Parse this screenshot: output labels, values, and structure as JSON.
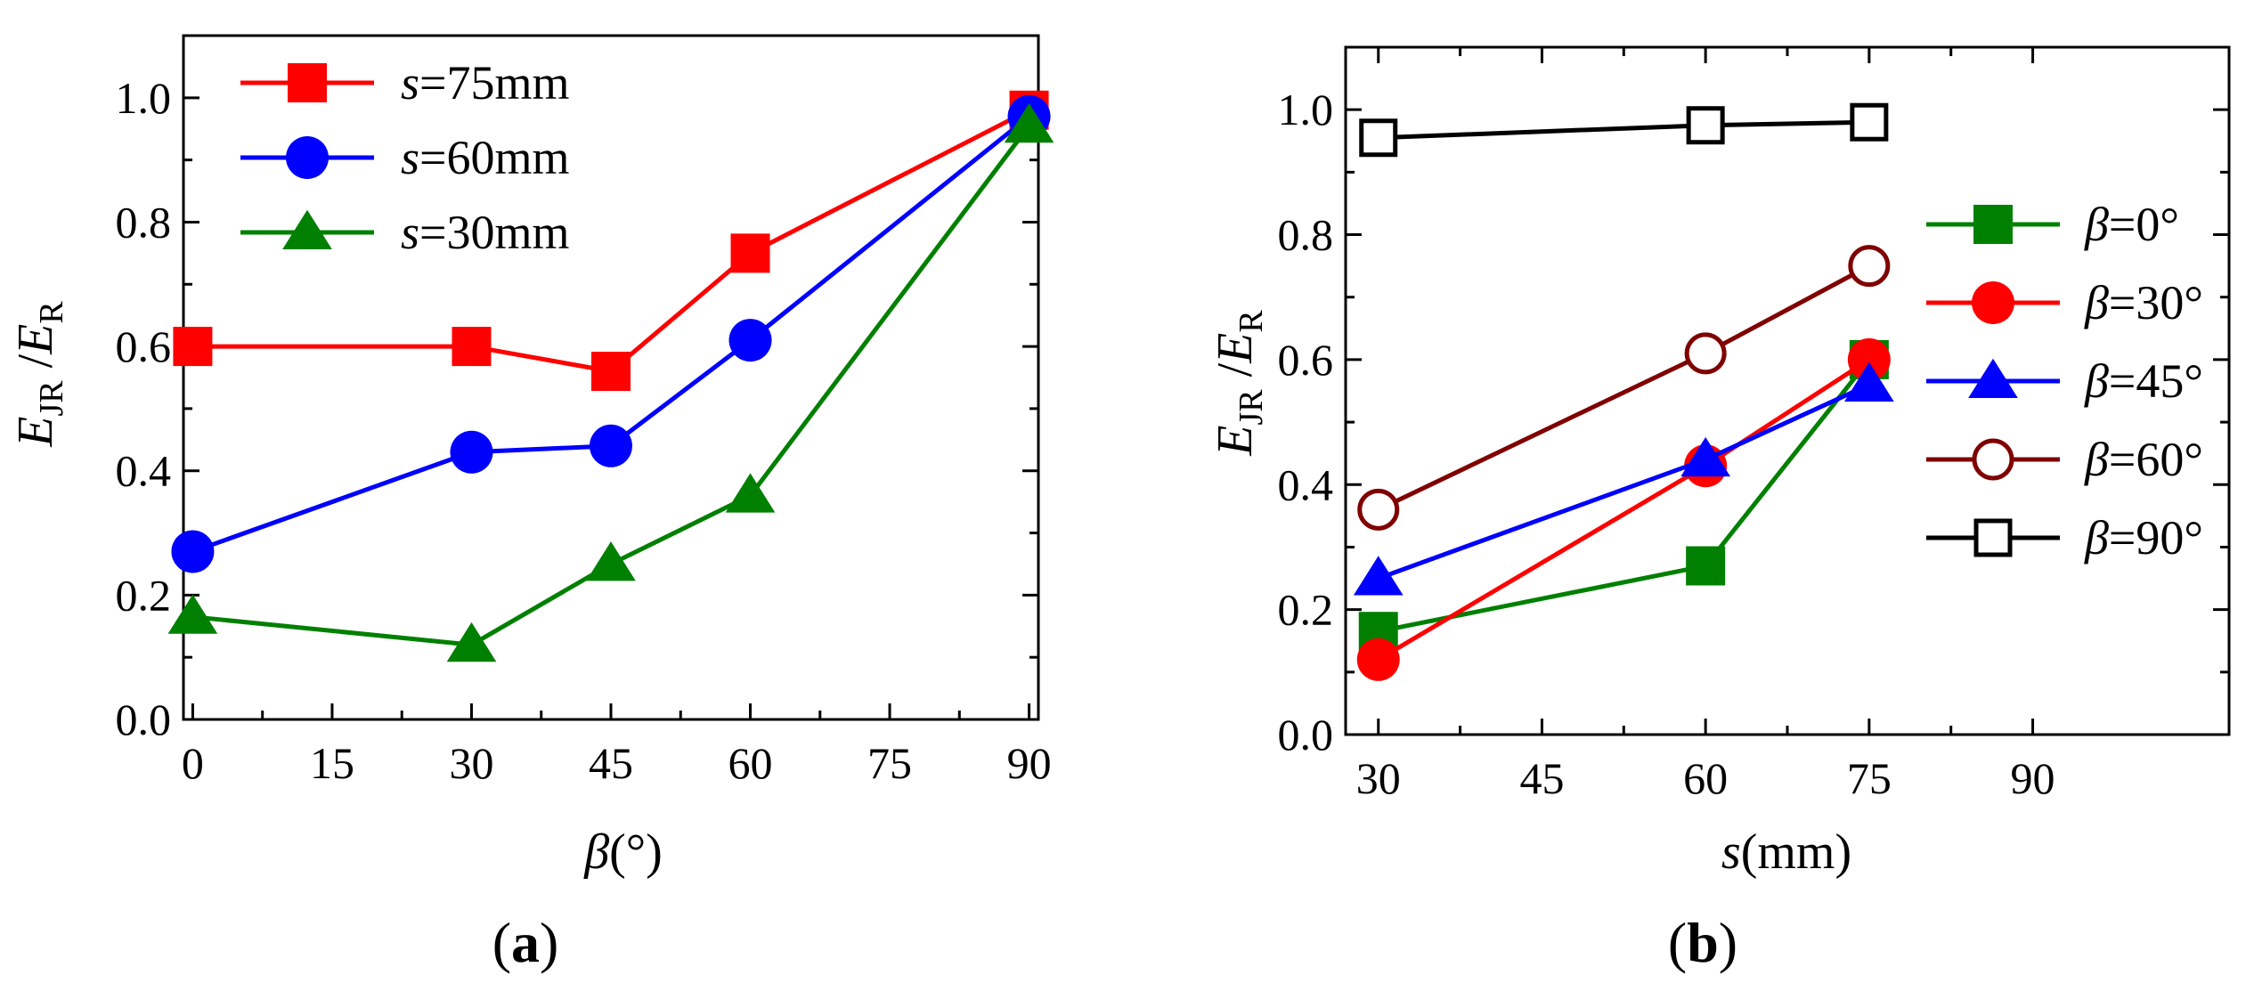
{
  "chart_data": [
    {
      "type": "line",
      "panel_label": "a",
      "xlabel": {
        "symbol": "β",
        "unit": "(°)"
      },
      "ylabel": {
        "main": "E",
        "sub1": "JR",
        "sep": " /",
        "main2": "E",
        "sub2": "R"
      },
      "xlim": [
        -1,
        91
      ],
      "ylim": [
        0.0,
        1.1
      ],
      "xticks": [
        0,
        15,
        30,
        45,
        60,
        75,
        90
      ],
      "xtick_labels": [
        "0",
        "15",
        "30",
        "45",
        "60",
        "75",
        "90"
      ],
      "yticks": [
        0.0,
        0.2,
        0.4,
        0.6,
        0.8,
        1.0
      ],
      "ytick_labels": [
        "0.0",
        "0.2",
        "0.4",
        "0.6",
        "0.8",
        "1.0"
      ],
      "legend_position": "top-left",
      "series": [
        {
          "name": "s=75mm",
          "sym": "s",
          "rest": "=75mm",
          "color": "#ff0000",
          "marker": "square",
          "x": [
            0,
            30,
            45,
            60,
            90
          ],
          "values": [
            0.6,
            0.6,
            0.56,
            0.75,
            0.98
          ]
        },
        {
          "name": "s=60mm",
          "sym": "s",
          "rest": "=60mm",
          "color": "#0000ff",
          "marker": "circle",
          "x": [
            0,
            30,
            45,
            60,
            90
          ],
          "values": [
            0.27,
            0.43,
            0.44,
            0.61,
            0.97
          ]
        },
        {
          "name": "s=30mm",
          "sym": "s",
          "rest": "=30mm",
          "color": "#008000",
          "marker": "triangle",
          "x": [
            0,
            30,
            45,
            60,
            90
          ],
          "values": [
            0.165,
            0.12,
            0.25,
            0.36,
            0.955
          ]
        }
      ]
    },
    {
      "type": "line",
      "panel_label": "b",
      "xlabel": {
        "symbol": "s",
        "unit": "(mm)"
      },
      "ylabel": {
        "main": "E",
        "sub1": "JR",
        "sep": " /",
        "main2": "E",
        "sub2": "R"
      },
      "xlim": [
        27,
        108
      ],
      "ylim": [
        0.0,
        1.1
      ],
      "xticks": [
        30,
        45,
        60,
        75,
        90
      ],
      "xtick_labels": [
        "30",
        "45",
        "60",
        "75",
        "90"
      ],
      "yticks": [
        0.0,
        0.2,
        0.4,
        0.6,
        0.8,
        1.0
      ],
      "ytick_labels": [
        "0.0",
        "0.2",
        "0.4",
        "0.6",
        "0.8",
        "1.0"
      ],
      "legend_position": "right",
      "series": [
        {
          "name": "β=0°",
          "sym": "β",
          "rest": "=0°",
          "color": "#008000",
          "marker": "square",
          "x": [
            30,
            60,
            75
          ],
          "values": [
            0.165,
            0.27,
            0.6
          ]
        },
        {
          "name": "β=30°",
          "sym": "β",
          "rest": "=30°",
          "color": "#ff0000",
          "marker": "circle",
          "x": [
            30,
            60,
            75
          ],
          "values": [
            0.12,
            0.43,
            0.6
          ]
        },
        {
          "name": "β=45°",
          "sym": "β",
          "rest": "=45°",
          "color": "#0000ff",
          "marker": "triangle",
          "x": [
            30,
            60,
            75
          ],
          "values": [
            0.25,
            0.44,
            0.56
          ]
        },
        {
          "name": "β=60°",
          "sym": "β",
          "rest": "=60°",
          "color": "#800000",
          "marker": "circle-open",
          "x": [
            30,
            60,
            75
          ],
          "values": [
            0.36,
            0.61,
            0.75
          ]
        },
        {
          "name": "β=90°",
          "sym": "β",
          "rest": "=90°",
          "color": "#000000",
          "marker": "square-open",
          "x": [
            30,
            60,
            75
          ],
          "values": [
            0.955,
            0.975,
            0.98
          ]
        }
      ]
    }
  ]
}
